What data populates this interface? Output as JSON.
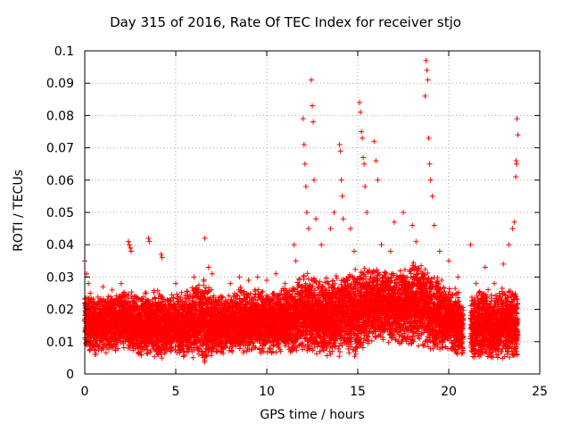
{
  "chart_data": {
    "type": "scatter",
    "title": "Day 315 of 2016, Rate Of TEC Index for receiver stjo",
    "xlabel": "GPS time / hours",
    "ylabel": "ROTI / TECUs",
    "xlim": [
      0,
      25
    ],
    "ylim": [
      0,
      0.1
    ],
    "x_ticks": [
      "0",
      "5",
      "10",
      "15",
      "20",
      "25"
    ],
    "y_ticks": [
      "0",
      "0.01",
      "0.02",
      "0.03",
      "0.04",
      "0.05",
      "0.06",
      "0.07",
      "0.08",
      "0.09",
      "0.1"
    ],
    "grid": true,
    "marker": "+",
    "color": "#ff0000",
    "points": [
      [
        0.0,
        0.035
      ],
      [
        0.1,
        0.031
      ],
      [
        0.2,
        0.028
      ],
      [
        0.3,
        0.025
      ],
      [
        0.5,
        0.022
      ],
      [
        1.0,
        0.027
      ],
      [
        1.5,
        0.026
      ],
      [
        2.0,
        0.028
      ],
      [
        2.4,
        0.041
      ],
      [
        2.45,
        0.04
      ],
      [
        2.5,
        0.039
      ],
      [
        2.55,
        0.038
      ],
      [
        3.5,
        0.042
      ],
      [
        3.55,
        0.041
      ],
      [
        4.2,
        0.037
      ],
      [
        4.25,
        0.036
      ],
      [
        5.0,
        0.028
      ],
      [
        6.0,
        0.03
      ],
      [
        6.6,
        0.042
      ],
      [
        6.8,
        0.033
      ],
      [
        7.0,
        0.031
      ],
      [
        8.0,
        0.028
      ],
      [
        8.5,
        0.03
      ],
      [
        9.0,
        0.029
      ],
      [
        9.5,
        0.03
      ],
      [
        10.0,
        0.029
      ],
      [
        10.5,
        0.031
      ],
      [
        11.0,
        0.028
      ],
      [
        11.5,
        0.04
      ],
      [
        11.6,
        0.035
      ],
      [
        12.0,
        0.079
      ],
      [
        12.05,
        0.071
      ],
      [
        12.1,
        0.065
      ],
      [
        12.15,
        0.058
      ],
      [
        12.2,
        0.05
      ],
      [
        12.3,
        0.045
      ],
      [
        12.45,
        0.091
      ],
      [
        12.5,
        0.083
      ],
      [
        12.55,
        0.078
      ],
      [
        12.6,
        0.06
      ],
      [
        12.7,
        0.048
      ],
      [
        13.0,
        0.04
      ],
      [
        13.5,
        0.045
      ],
      [
        13.7,
        0.05
      ],
      [
        14.0,
        0.071
      ],
      [
        14.05,
        0.069
      ],
      [
        14.1,
        0.06
      ],
      [
        14.15,
        0.055
      ],
      [
        14.2,
        0.048
      ],
      [
        14.6,
        0.045
      ],
      [
        14.8,
        0.038
      ],
      [
        15.1,
        0.084
      ],
      [
        15.15,
        0.081
      ],
      [
        15.2,
        0.075
      ],
      [
        15.25,
        0.073
      ],
      [
        15.3,
        0.067
      ],
      [
        15.35,
        0.065
      ],
      [
        15.4,
        0.058
      ],
      [
        15.5,
        0.05
      ],
      [
        15.9,
        0.072
      ],
      [
        16.0,
        0.066
      ],
      [
        16.1,
        0.06
      ],
      [
        16.3,
        0.04
      ],
      [
        16.8,
        0.038
      ],
      [
        17.0,
        0.047
      ],
      [
        17.5,
        0.05
      ],
      [
        18.0,
        0.046
      ],
      [
        18.2,
        0.041
      ],
      [
        18.75,
        0.097
      ],
      [
        18.8,
        0.094
      ],
      [
        18.85,
        0.091
      ],
      [
        18.7,
        0.086
      ],
      [
        18.9,
        0.073
      ],
      [
        18.95,
        0.065
      ],
      [
        19.0,
        0.06
      ],
      [
        19.1,
        0.055
      ],
      [
        19.2,
        0.046
      ],
      [
        19.5,
        0.038
      ],
      [
        20.0,
        0.035
      ],
      [
        20.5,
        0.03
      ],
      [
        21.2,
        0.04
      ],
      [
        21.5,
        0.028
      ],
      [
        22.0,
        0.033
      ],
      [
        22.5,
        0.028
      ],
      [
        23.0,
        0.034
      ],
      [
        23.3,
        0.04
      ],
      [
        23.5,
        0.045
      ],
      [
        23.6,
        0.047
      ],
      [
        23.75,
        0.079
      ],
      [
        23.8,
        0.074
      ],
      [
        23.7,
        0.066
      ],
      [
        23.72,
        0.065
      ],
      [
        23.68,
        0.061
      ]
    ],
    "band": [
      [
        0.0,
        0.007,
        0.026
      ],
      [
        0.5,
        0.006,
        0.024
      ],
      [
        1.0,
        0.006,
        0.025
      ],
      [
        1.5,
        0.007,
        0.025
      ],
      [
        2.0,
        0.006,
        0.026
      ],
      [
        2.5,
        0.006,
        0.027
      ],
      [
        3.0,
        0.005,
        0.025
      ],
      [
        3.5,
        0.006,
        0.026
      ],
      [
        4.0,
        0.004,
        0.027
      ],
      [
        4.5,
        0.005,
        0.025
      ],
      [
        5.0,
        0.005,
        0.026
      ],
      [
        5.5,
        0.005,
        0.026
      ],
      [
        6.0,
        0.004,
        0.028
      ],
      [
        6.5,
        0.003,
        0.03
      ],
      [
        7.0,
        0.005,
        0.027
      ],
      [
        7.5,
        0.005,
        0.025
      ],
      [
        8.0,
        0.006,
        0.026
      ],
      [
        8.5,
        0.006,
        0.027
      ],
      [
        9.0,
        0.006,
        0.026
      ],
      [
        9.5,
        0.006,
        0.027
      ],
      [
        10.0,
        0.006,
        0.026
      ],
      [
        10.5,
        0.006,
        0.027
      ],
      [
        11.0,
        0.006,
        0.027
      ],
      [
        11.5,
        0.006,
        0.03
      ],
      [
        12.0,
        0.006,
        0.031
      ],
      [
        12.5,
        0.006,
        0.032
      ],
      [
        13.0,
        0.006,
        0.03
      ],
      [
        13.5,
        0.005,
        0.031
      ],
      [
        14.0,
        0.005,
        0.031
      ],
      [
        14.5,
        0.006,
        0.032
      ],
      [
        15.0,
        0.004,
        0.033
      ],
      [
        15.5,
        0.008,
        0.034
      ],
      [
        16.0,
        0.009,
        0.034
      ],
      [
        16.5,
        0.009,
        0.033
      ],
      [
        17.0,
        0.008,
        0.033
      ],
      [
        17.5,
        0.009,
        0.034
      ],
      [
        18.0,
        0.008,
        0.035
      ],
      [
        18.5,
        0.008,
        0.035
      ],
      [
        19.0,
        0.007,
        0.032
      ],
      [
        19.5,
        0.006,
        0.03
      ],
      [
        20.0,
        0.006,
        0.028
      ],
      [
        20.5,
        0.005,
        0.026
      ],
      [
        20.8,
        0.005,
        0.022
      ],
      [
        21.0,
        null,
        null
      ],
      [
        21.2,
        0.003,
        0.025
      ],
      [
        21.5,
        0.004,
        0.026
      ],
      [
        22.0,
        0.004,
        0.027
      ],
      [
        22.5,
        0.004,
        0.025
      ],
      [
        23.0,
        0.004,
        0.027
      ],
      [
        23.5,
        0.004,
        0.027
      ],
      [
        23.8,
        0.005,
        0.026
      ]
    ]
  }
}
